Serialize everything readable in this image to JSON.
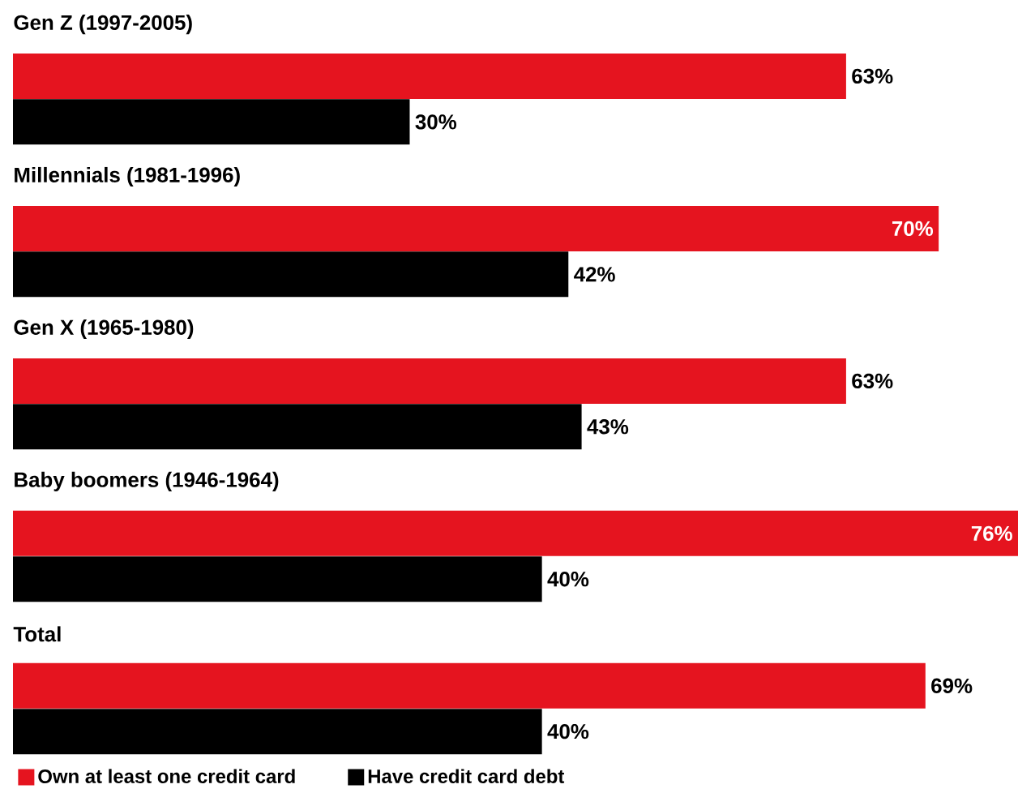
{
  "chart_data": {
    "type": "bar",
    "orientation": "horizontal",
    "categories": [
      "Gen Z (1997-2005)",
      "Millennials (1981-1996)",
      "Gen X (1965-1980)",
      "Baby boomers (1946-1964)",
      "Total"
    ],
    "series": [
      {
        "name": "Own at least one credit card",
        "color": "#e5141f",
        "values": [
          63,
          70,
          63,
          76,
          69
        ],
        "value_labels": [
          "63%",
          "70%",
          "63%",
          "76%",
          "69%"
        ]
      },
      {
        "name": "Have credit card debt",
        "color": "#000000",
        "values": [
          30,
          42,
          43,
          40,
          40
        ],
        "value_labels": [
          "30%",
          "42%",
          "43%",
          "40%",
          "40%"
        ]
      }
    ],
    "legend": "bottom left"
  }
}
